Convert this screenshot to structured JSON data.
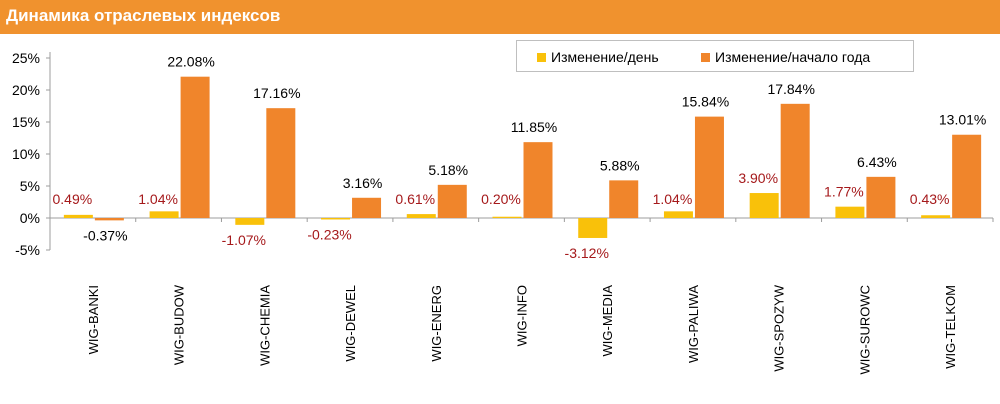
{
  "header": {
    "title": "Динамика отраслевых индексов"
  },
  "colors": {
    "title_bar": "#f0922e",
    "series_day": "#f9c10a",
    "series_year": "#f0852b",
    "label_day": "#a5191b",
    "label_year": "#000000",
    "axis": "#9c9c9c"
  },
  "chart_data": {
    "type": "bar",
    "categories": [
      "WIG-BANKI",
      "WIG-BUDOW",
      "WIG-CHEMIA",
      "WIG-DEWEL",
      "WIG-ENERG",
      "WIG-INFO",
      "WIG-MEDIA",
      "WIG-PALIWA",
      "WIG-SPOZYW",
      "WIG-SUROWC",
      "WIG-TELKOM"
    ],
    "series": [
      {
        "name": "Изменение/день",
        "values": [
          0.49,
          1.04,
          -1.07,
          -0.23,
          0.61,
          0.2,
          -3.12,
          1.04,
          3.9,
          1.77,
          0.43
        ],
        "labels": [
          "0.49%",
          "1.04%",
          "-1.07%",
          "-0.23%",
          "0.61%",
          "0.20%",
          "-3.12%",
          "1.04%",
          "3.90%",
          "1.77%",
          "0.43%"
        ]
      },
      {
        "name": "Изменение/начало года",
        "values": [
          -0.37,
          22.08,
          17.16,
          3.16,
          5.18,
          11.85,
          5.88,
          15.84,
          17.84,
          6.43,
          13.01
        ],
        "labels": [
          "-0.37%",
          "22.08%",
          "17.16%",
          "3.16%",
          "5.18%",
          "11.85%",
          "5.88%",
          "15.84%",
          "17.84%",
          "6.43%",
          "13.01%"
        ]
      }
    ],
    "y_ticks": [
      -5,
      0,
      5,
      10,
      15,
      20,
      25
    ],
    "y_tick_labels": [
      "-5%",
      "0%",
      "5%",
      "10%",
      "15%",
      "20%",
      "25%"
    ],
    "ylim": [
      -5,
      25
    ],
    "grid": false,
    "legend_position": "top-right"
  }
}
